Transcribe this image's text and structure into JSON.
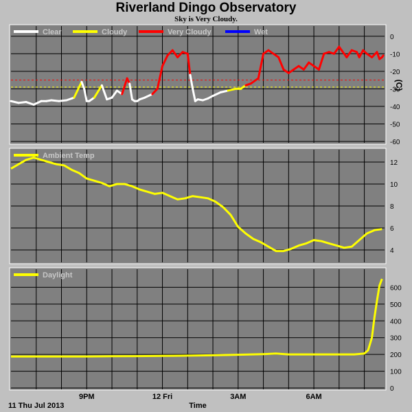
{
  "title": "Riverland Dingo Observatory",
  "subtitle": "Sky is Very Cloudy.",
  "date_label": "11 Thu Jul 2013",
  "x_axis_label": "Time",
  "x_ticks": [
    "9PM",
    "12 Fri",
    "3AM",
    "6AM"
  ],
  "colors": {
    "panel_bg": "#808080",
    "clear": "#ffffff",
    "cloudy": "#ffff00",
    "very_cloudy": "#ff0000",
    "wet": "#0000ff",
    "temp": "#ffff00",
    "daylight": "#ffff00"
  },
  "chart_data": [
    {
      "type": "line",
      "panel": "sky",
      "legend": [
        "Clear",
        "Cloudy",
        "Very Cloudy",
        "Wet"
      ],
      "y_unit": "(C)",
      "ylim": [
        -60,
        5
      ],
      "y_ticks": [
        0,
        -10,
        -20,
        -30,
        -40,
        -50,
        -60
      ],
      "thresholds": [
        {
          "value": -25,
          "color": "#ff0000"
        },
        {
          "value": -29,
          "color": "#ffff00"
        }
      ],
      "x_hours": [
        18.0,
        18.3,
        18.6,
        18.9,
        19.2,
        19.4,
        19.6,
        19.9,
        20.2,
        20.5,
        20.8,
        20.9,
        21.0,
        21.1,
        21.3,
        21.6,
        21.8,
        22.0,
        22.2,
        22.4,
        22.6,
        22.7,
        22.8,
        22.9,
        23.0,
        23.1,
        23.3,
        23.6,
        23.8,
        24.0,
        24.2,
        24.4,
        24.6,
        24.8,
        25.0,
        25.1,
        25.2,
        25.3,
        25.4,
        25.6,
        25.8,
        26.0,
        26.3,
        26.6,
        26.9,
        27.1,
        27.3,
        27.5,
        27.8,
        28.0,
        28.2,
        28.4,
        28.6,
        28.8,
        29.0,
        29.2,
        29.4,
        29.6,
        29.8,
        30.0,
        30.2,
        30.4,
        30.6,
        30.8,
        31.0,
        31.1,
        31.3,
        31.5,
        31.7,
        31.8,
        31.95,
        32.1,
        32.3,
        32.5,
        32.6,
        32.7,
        32.75
      ],
      "values": [
        -37,
        -38,
        -37.5,
        -39,
        -37,
        -37,
        -36.5,
        -37,
        -36.5,
        -35,
        -26,
        -30,
        -37,
        -37,
        -35,
        -28,
        -36,
        -35,
        -31,
        -33,
        -24,
        -27,
        -36,
        -37,
        -37,
        -36,
        -35,
        -33,
        -30,
        -17,
        -11,
        -8,
        -12,
        -9,
        -10,
        -22,
        -30,
        -37,
        -36,
        -36.5,
        -35.5,
        -34,
        -32,
        -31,
        -30,
        -30,
        -28,
        -27,
        -24,
        -10,
        -8,
        -10,
        -12,
        -19,
        -21,
        -19,
        -17,
        -19,
        -15,
        -17,
        -19,
        -10,
        -9,
        -10,
        -6,
        -8,
        -12,
        -8,
        -9,
        -12,
        -8,
        -10,
        -12,
        -9,
        -13,
        -12,
        -11
      ],
      "colors": [
        "clear",
        "clear",
        "clear",
        "clear",
        "clear",
        "clear",
        "clear",
        "clear",
        "clear",
        "clear",
        "cloudy",
        "clear",
        "clear",
        "clear",
        "clear",
        "cloudy",
        "clear",
        "clear",
        "clear",
        "clear",
        "very_cloudy",
        "very_cloudy",
        "clear",
        "clear",
        "clear",
        "clear",
        "clear",
        "clear",
        "very_cloudy",
        "very_cloudy",
        "very_cloudy",
        "very_cloudy",
        "very_cloudy",
        "very_cloudy",
        "very_cloudy",
        "very_cloudy",
        "clear",
        "clear",
        "clear",
        "clear",
        "clear",
        "clear",
        "clear",
        "clear",
        "cloudy",
        "cloudy",
        "cloudy",
        "very_cloudy",
        "very_cloudy",
        "very_cloudy",
        "very_cloudy",
        "very_cloudy",
        "very_cloudy",
        "very_cloudy",
        "very_cloudy",
        "very_cloudy",
        "very_cloudy",
        "very_cloudy",
        "very_cloudy",
        "very_cloudy",
        "very_cloudy",
        "very_cloudy",
        "very_cloudy",
        "very_cloudy",
        "very_cloudy",
        "very_cloudy",
        "very_cloudy",
        "very_cloudy",
        "very_cloudy",
        "very_cloudy",
        "very_cloudy",
        "very_cloudy",
        "very_cloudy",
        "very_cloudy",
        "very_cloudy",
        "very_cloudy",
        "very_cloudy"
      ]
    },
    {
      "type": "line",
      "panel": "temp",
      "legend": [
        "Ambient Temp"
      ],
      "ylim": [
        3,
        13
      ],
      "y_ticks": [
        4,
        6,
        8,
        10,
        12
      ],
      "x_hours": [
        18.0,
        18.3,
        18.6,
        18.9,
        19.2,
        19.5,
        19.8,
        20.1,
        20.4,
        20.7,
        21.0,
        21.3,
        21.6,
        21.9,
        22.2,
        22.5,
        22.8,
        23.1,
        23.4,
        23.7,
        24.0,
        24.3,
        24.6,
        24.9,
        25.2,
        25.5,
        25.8,
        26.1,
        26.4,
        26.7,
        27.0,
        27.3,
        27.6,
        27.9,
        28.2,
        28.5,
        28.8,
        29.1,
        29.4,
        29.7,
        30.0,
        30.3,
        30.6,
        30.9,
        31.2,
        31.5,
        31.8,
        32.1,
        32.4,
        32.7
      ],
      "values": [
        11.4,
        11.8,
        12.2,
        12.4,
        12.2,
        12.0,
        11.8,
        11.7,
        11.3,
        11.0,
        10.5,
        10.3,
        10.1,
        9.8,
        10.0,
        10.0,
        9.8,
        9.5,
        9.3,
        9.1,
        9.2,
        8.9,
        8.6,
        8.7,
        8.9,
        8.8,
        8.7,
        8.4,
        7.9,
        7.2,
        6.1,
        5.5,
        5.0,
        4.7,
        4.3,
        3.9,
        3.9,
        4.1,
        4.4,
        4.6,
        4.9,
        4.8,
        4.6,
        4.4,
        4.2,
        4.3,
        4.9,
        5.5,
        5.8,
        5.9
      ]
    },
    {
      "type": "line",
      "panel": "daylight",
      "legend": [
        "Daylight"
      ],
      "ylim": [
        0,
        700
      ],
      "y_ticks": [
        0,
        100,
        200,
        300,
        400,
        500,
        600
      ],
      "x_hours": [
        18.0,
        19.0,
        20.0,
        21.0,
        22.0,
        23.0,
        24.0,
        25.0,
        26.0,
        27.0,
        28.0,
        28.5,
        29.0,
        30.0,
        31.0,
        31.6,
        32.0,
        32.15,
        32.3,
        32.4,
        32.5,
        32.6,
        32.7
      ],
      "values": [
        188,
        188,
        188,
        188,
        189,
        190,
        191,
        193,
        195,
        198,
        202,
        205,
        200,
        200,
        200,
        200,
        205,
        225,
        300,
        420,
        520,
        610,
        650
      ]
    }
  ]
}
